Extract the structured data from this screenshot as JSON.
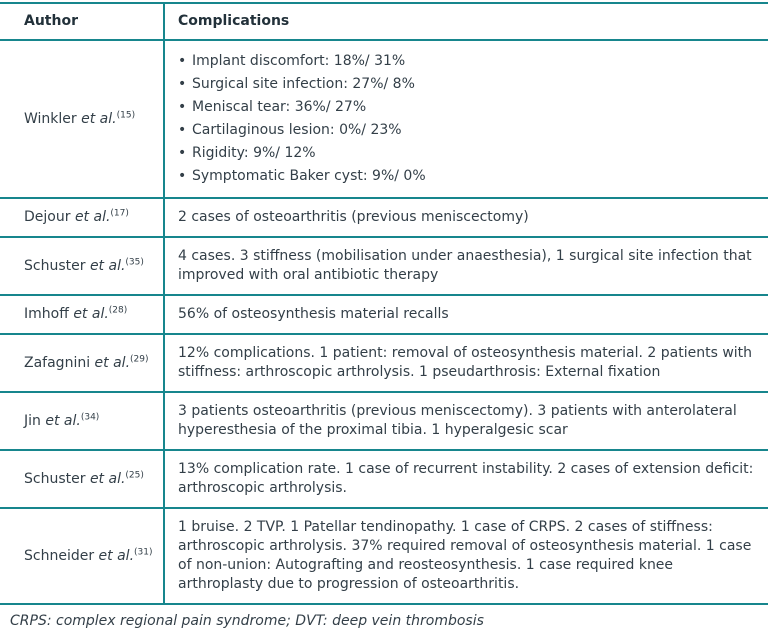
{
  "table": {
    "columns": [
      "Author",
      "Complications"
    ],
    "rows": [
      {
        "author": "Winkler",
        "etal": "et al.",
        "ref": "(15)",
        "bullets": [
          "Implant discomfort: 18%/ 31%",
          "Surgical site infection: 27%/ 8%",
          "Meniscal tear: 36%/ 27%",
          "Cartilaginous lesion: 0%/ 23%",
          "Rigidity: 9%/ 12%",
          "Symptomatic Baker cyst: 9%/ 0%"
        ]
      },
      {
        "author": "Dejour",
        "etal": "et al.",
        "ref": "(17)",
        "text": "2 cases of osteoarthritis (previous meniscectomy)"
      },
      {
        "author": "Schuster",
        "etal": "et al.",
        "ref": "(35)",
        "text": "4 cases. 3 stiffness (mobilisation under anaesthesia), 1 surgical site infection that improved with oral antibiotic therapy"
      },
      {
        "author": "Imhoff",
        "etal": "et al.",
        "ref": "(28)",
        "text": "56% of osteosynthesis material recalls"
      },
      {
        "author": "Zafagnini",
        "etal": "et al.",
        "ref": "(29)",
        "text": "12% complications. 1 patient: removal of osteosynthesis material. 2 patients with stiffness: arthroscopic arthrolysis. 1 pseudarthrosis: External fixation"
      },
      {
        "author": "Jin",
        "etal": "et al.",
        "ref": "(34)",
        "text": "3 patients osteoarthritis (previous meniscectomy). 3 patients with anterolateral hyperesthesia of the proximal tibia. 1 hyperalgesic scar"
      },
      {
        "author": "Schuster",
        "etal": "et al.",
        "ref": "(25)",
        "text": "13% complication rate. 1 case of recurrent instability. 2 cases of extension deficit: arthroscopic arthrolysis."
      },
      {
        "author": "Schneider",
        "etal": "et al.",
        "ref": "(31)",
        "text": "1 bruise. 2 TVP. 1 Patellar tendinopathy. 1 case of CRPS. 2 cases of stiffness: arthroscopic arthrolysis. 37% required removal of osteosynthesis material. 1 case of non-union: Autografting and reosteosynthesis. 1 case required knee arthroplasty due to progression of osteoarthritis."
      }
    ],
    "footnote": "CRPS: complex regional pain syndrome; DVT: deep vein thrombosis"
  },
  "colors": {
    "rule_teal": "#17868d",
    "text": "#333f48"
  }
}
